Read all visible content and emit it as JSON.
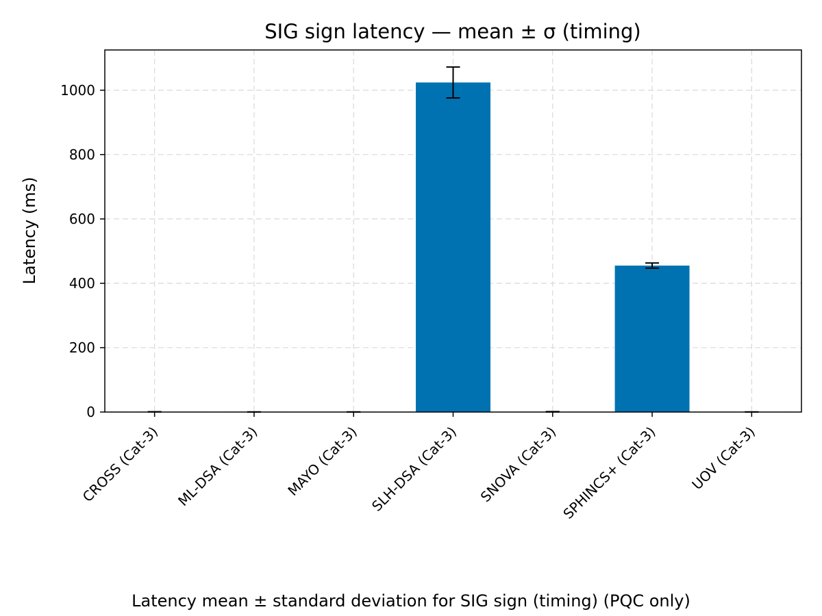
{
  "chart_data": {
    "type": "bar",
    "title": "SIG sign latency — mean ± σ (timing)",
    "xlabel": "",
    "ylabel": "Latency (ms)",
    "ylim": [
      0,
      1125
    ],
    "yticks": [
      0,
      200,
      400,
      600,
      800,
      1000
    ],
    "grid": true,
    "bar_color": "#0072b2",
    "categories": [
      "CROSS (Cat-3)",
      "ML-DSA (Cat-3)",
      "MAYO (Cat-3)",
      "SLH-DSA (Cat-3)",
      "SNOVA (Cat-3)",
      "SPHINCS+ (Cat-3)",
      "UOV (Cat-3)"
    ],
    "values": [
      0.6,
      0.2,
      0.3,
      1024,
      0.8,
      455,
      0.2
    ],
    "errors": [
      0.1,
      0.05,
      0.05,
      48,
      0.5,
      8,
      0.05
    ]
  },
  "caption": "Latency mean ± standard deviation for SIG sign (timing) (PQC only)"
}
